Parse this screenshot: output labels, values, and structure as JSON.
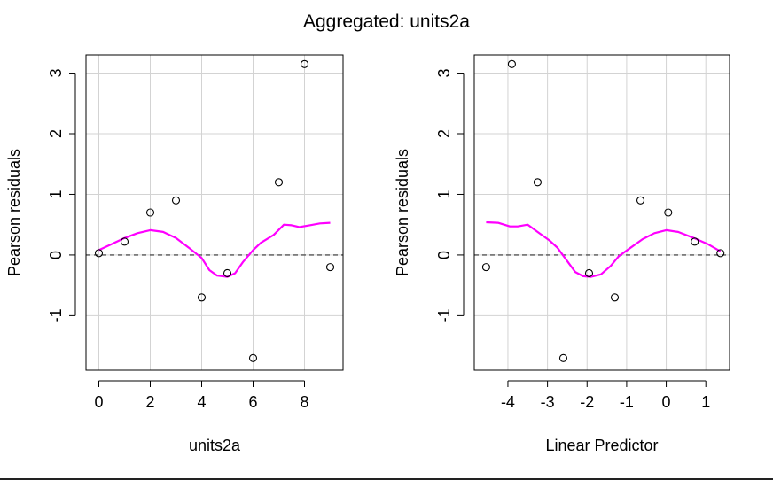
{
  "title": "Aggregated: units2a",
  "colors": {
    "smooth": "#ff00ff",
    "grid": "#d3d3d3",
    "zero_line": "#555555",
    "points": "#000000"
  },
  "chart_data": [
    {
      "type": "scatter",
      "xlabel": "units2a",
      "ylabel": "Pearson residuals",
      "xlim": [
        -0.5,
        9.5
      ],
      "ylim": [
        -1.9,
        3.3
      ],
      "xticks": [
        0,
        2,
        4,
        6,
        8
      ],
      "yticks": [
        -1,
        0,
        1,
        2,
        3
      ],
      "grid": true,
      "points": [
        {
          "x": 0,
          "y": 0.03
        },
        {
          "x": 1,
          "y": 0.22
        },
        {
          "x": 2,
          "y": 0.7
        },
        {
          "x": 3,
          "y": 0.9
        },
        {
          "x": 4,
          "y": -0.7
        },
        {
          "x": 5,
          "y": -0.3
        },
        {
          "x": 6,
          "y": -1.7
        },
        {
          "x": 7,
          "y": 1.2
        },
        {
          "x": 8,
          "y": 3.15
        },
        {
          "x": 9,
          "y": -0.2
        }
      ],
      "reference_line_y": 0,
      "smooth": [
        [
          0,
          0.08
        ],
        [
          0.5,
          0.18
        ],
        [
          1,
          0.28
        ],
        [
          1.5,
          0.36
        ],
        [
          2,
          0.41
        ],
        [
          2.5,
          0.38
        ],
        [
          3,
          0.28
        ],
        [
          3.5,
          0.12
        ],
        [
          4,
          -0.05
        ],
        [
          4.3,
          -0.25
        ],
        [
          4.6,
          -0.34
        ],
        [
          5,
          -0.36
        ],
        [
          5.3,
          -0.3
        ],
        [
          5.6,
          -0.12
        ],
        [
          6,
          0.08
        ],
        [
          6.3,
          0.2
        ],
        [
          6.8,
          0.33
        ],
        [
          7.2,
          0.5
        ],
        [
          7.5,
          0.49
        ],
        [
          7.8,
          0.46
        ],
        [
          8.2,
          0.49
        ],
        [
          8.6,
          0.52
        ],
        [
          9,
          0.53
        ]
      ]
    },
    {
      "type": "scatter",
      "xlabel": "Linear Predictor",
      "ylabel": "Pearson residuals",
      "xlim": [
        -4.85,
        1.6
      ],
      "ylim": [
        -1.9,
        3.3
      ],
      "xticks": [
        -4,
        -3,
        -2,
        -1,
        0,
        1
      ],
      "yticks": [
        -1,
        0,
        1,
        2,
        3
      ],
      "grid": true,
      "points": [
        {
          "x": -4.55,
          "y": -0.2
        },
        {
          "x": -3.9,
          "y": 3.15
        },
        {
          "x": -3.25,
          "y": 1.2
        },
        {
          "x": -2.6,
          "y": -1.7
        },
        {
          "x": -1.95,
          "y": -0.3
        },
        {
          "x": -1.3,
          "y": -0.7
        },
        {
          "x": -0.65,
          "y": 0.9
        },
        {
          "x": 0.05,
          "y": 0.7
        },
        {
          "x": 0.72,
          "y": 0.22
        },
        {
          "x": 1.37,
          "y": 0.03
        }
      ],
      "reference_line_y": 0,
      "smooth": [
        [
          -4.55,
          0.54
        ],
        [
          -4.25,
          0.53
        ],
        [
          -3.95,
          0.47
        ],
        [
          -3.75,
          0.47
        ],
        [
          -3.5,
          0.5
        ],
        [
          -3.25,
          0.38
        ],
        [
          -2.95,
          0.24
        ],
        [
          -2.75,
          0.12
        ],
        [
          -2.5,
          -0.1
        ],
        [
          -2.3,
          -0.28
        ],
        [
          -2.1,
          -0.35
        ],
        [
          -1.9,
          -0.36
        ],
        [
          -1.65,
          -0.32
        ],
        [
          -1.4,
          -0.18
        ],
        [
          -1.2,
          -0.02
        ],
        [
          -0.9,
          0.12
        ],
        [
          -0.6,
          0.26
        ],
        [
          -0.3,
          0.36
        ],
        [
          0.0,
          0.41
        ],
        [
          0.3,
          0.38
        ],
        [
          0.7,
          0.28
        ],
        [
          1.05,
          0.18
        ],
        [
          1.37,
          0.06
        ]
      ]
    }
  ]
}
